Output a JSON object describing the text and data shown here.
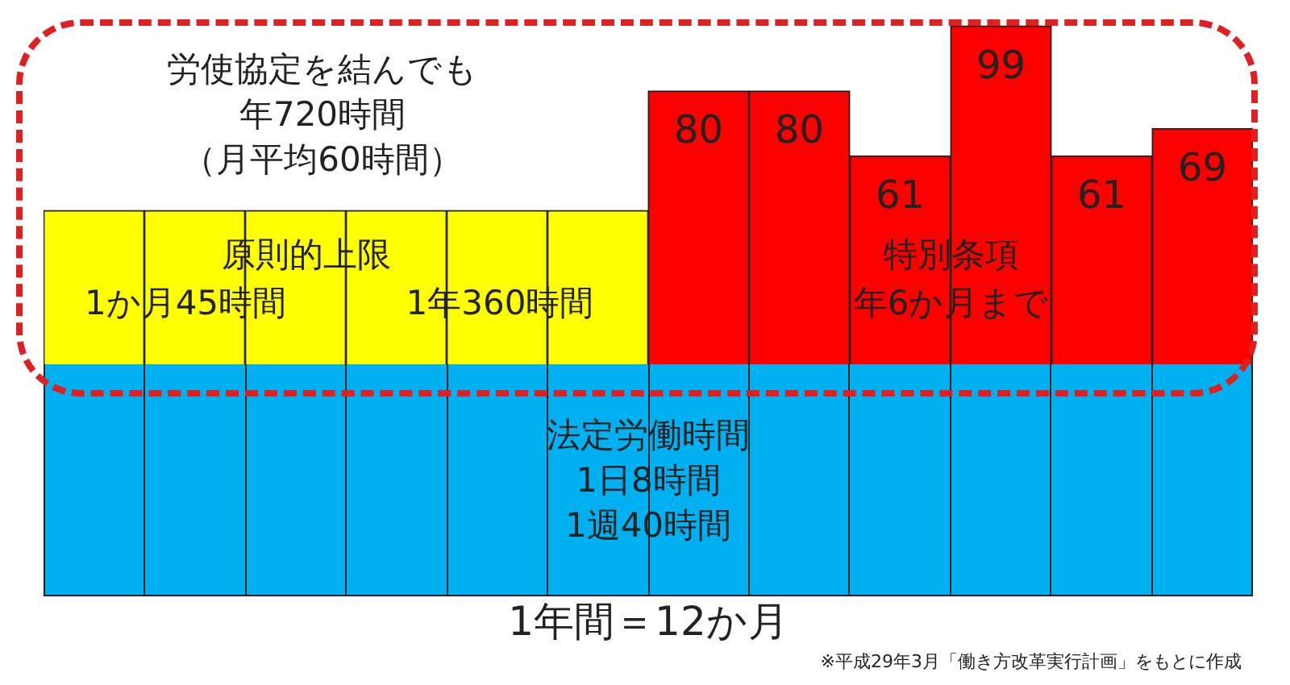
{
  "chart_data": {
    "type": "bar",
    "title": "労使協定を結んでも",
    "subtitle": "年720時間",
    "categories": [
      null,
      null,
      null,
      null,
      null,
      null,
      null,
      null,
      null,
      null,
      null,
      null
    ],
    "stacked": true,
    "ylim": [
      0,
      100
    ],
    "tick_labels": false,
    "series": [
      {
        "color": "#ffff00",
        "values": [
          45,
          45,
          45,
          45,
          45,
          45,
          null,
          null,
          null,
          null,
          null,
          null
        ]
      },
      {
        "color": "#ff0000",
        "values": [
          null,
          null,
          null,
          null,
          null,
          null,
          80,
          80,
          61,
          99,
          61,
          69
        ],
        "value_labels": [
          null,
          null,
          null,
          null,
          null,
          null,
          "80",
          "80",
          "61",
          "99",
          "61",
          "69"
        ]
      }
    ],
    "annotations": [
      "（月平均60時間）",
      "原則的上限",
      "1か月45時間",
      "1年360時間",
      "特別条項",
      "年6か月まで",
      "法定労働時間",
      "1日8時間",
      "1週40時間",
      "1年間＝12か月",
      "※平成29年3月「働き方改革実行計画」をもとに作成"
    ]
  }
}
